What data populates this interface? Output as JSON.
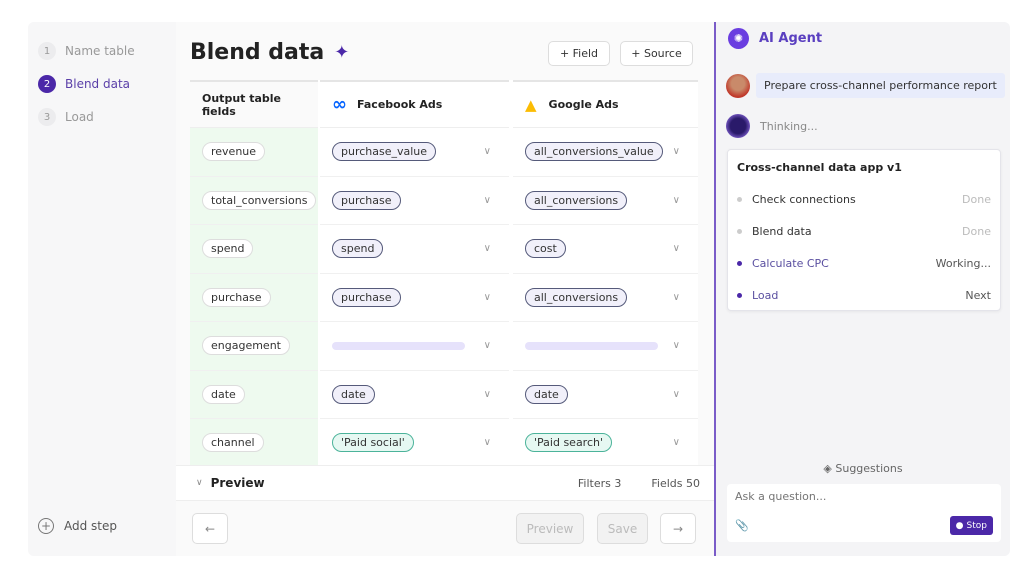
{
  "sidebar": {
    "steps": [
      {
        "num": "1",
        "label": "Name table"
      },
      {
        "num": "2",
        "label": "Blend data"
      },
      {
        "num": "3",
        "label": "Load"
      }
    ],
    "add_step": "Add step"
  },
  "main": {
    "title": "Blend data",
    "field_btn": "+ Field",
    "source_btn": "+ Source"
  },
  "table": {
    "headers": [
      "Output table fields",
      "Facebook Ads",
      "Google Ads"
    ],
    "rows": [
      {
        "field": "revenue",
        "facebook": "purchase_value",
        "google": "all_conversions_value"
      },
      {
        "field": "total_conversions",
        "facebook": "purchase",
        "google": "all_conversions"
      },
      {
        "field": "spend",
        "facebook": "spend",
        "google": "cost"
      },
      {
        "field": "purchase",
        "facebook": "purchase",
        "google": "all_conversions"
      },
      {
        "field": "engagement",
        "facebook": "",
        "google": ""
      },
      {
        "field": "date",
        "facebook": "date",
        "google": "date"
      },
      {
        "field": "channel",
        "facebook": "'Paid social'",
        "google": "'Paid search'"
      }
    ]
  },
  "preview": {
    "label": "Preview",
    "filters": "Filters 3",
    "fields": "Fields 50"
  },
  "footer": {
    "back": "←",
    "preview": "Preview",
    "save": "Save",
    "next": "→"
  },
  "agent": {
    "title": "AI Agent",
    "user_message": "Prepare cross-channel performance report",
    "thinking": "Thinking...",
    "card_title": "Cross-channel data app v1",
    "tasks": [
      {
        "label": "Check connections",
        "status": "Done"
      },
      {
        "label": "Blend data",
        "status": "Done"
      },
      {
        "label": "Calculate CPC",
        "status": "Working..."
      },
      {
        "label": "Load",
        "status": "Next"
      }
    ],
    "suggestions": "Suggestions",
    "ask_placeholder": "Ask a question...",
    "stop": "Stop"
  },
  "colors": {
    "accent": "#4b28a8",
    "fields_bg": "#eefaef",
    "constant_pill": "#4bb39a"
  }
}
